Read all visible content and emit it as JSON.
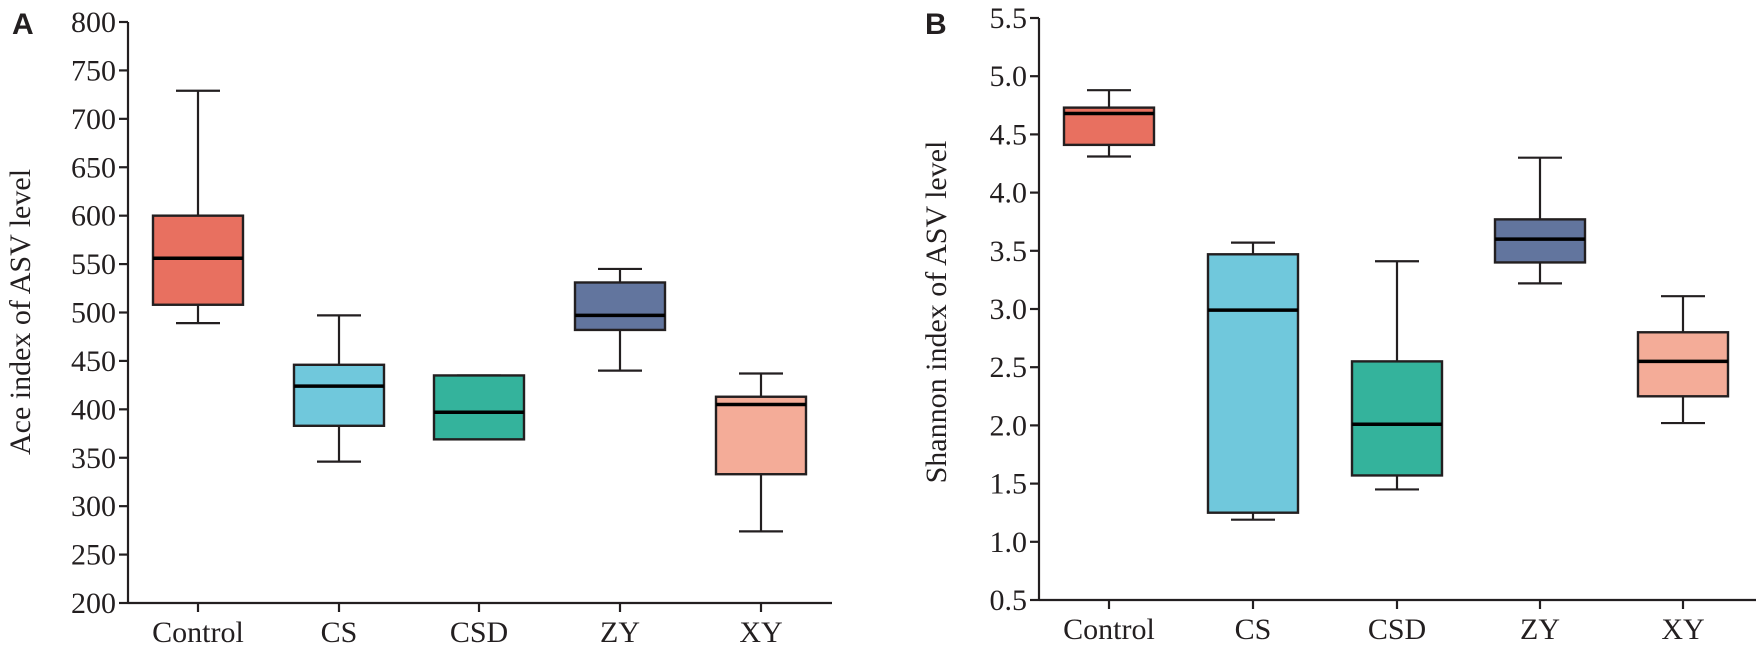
{
  "chart_data": [
    {
      "type": "boxplot",
      "panel": "A",
      "title": "",
      "xlabel": "",
      "ylabel": "Ace index of ASV level",
      "ylim": [
        200,
        800
      ],
      "yticks": [
        "200",
        "250",
        "300",
        "350",
        "400",
        "450",
        "500",
        "550",
        "600",
        "650",
        "700",
        "750",
        "800"
      ],
      "ytick_values": [
        200,
        250,
        300,
        350,
        400,
        450,
        500,
        550,
        600,
        650,
        700,
        750,
        800
      ],
      "grid": false,
      "categories": [
        "Control",
        "CS",
        "CSD",
        "ZY",
        "XY"
      ],
      "colors": [
        "#e87060",
        "#70c8dc",
        "#34b39c",
        "#62759e",
        "#f4ac98"
      ],
      "boxes": [
        {
          "label": "Control",
          "min": 489,
          "q1": 508,
          "median": 556,
          "q3": 600,
          "max": 729
        },
        {
          "label": "CS",
          "min": 346,
          "q1": 383,
          "median": 424,
          "q3": 446,
          "max": 497
        },
        {
          "label": "CSD",
          "min": 369,
          "q1": 369,
          "median": 397,
          "q3": 435,
          "max": 435
        },
        {
          "label": "ZY",
          "min": 440,
          "q1": 482,
          "median": 497,
          "q3": 531,
          "max": 545
        },
        {
          "label": "XY",
          "min": 274,
          "q1": 333,
          "median": 405,
          "q3": 413,
          "max": 437
        }
      ]
    },
    {
      "type": "boxplot",
      "panel": "B",
      "title": "",
      "xlabel": "",
      "ylabel": "Shannon index of ASV level",
      "ylim": [
        0.5,
        5.5
      ],
      "yticks": [
        "0.5",
        "1.0",
        "1.5",
        "2.0",
        "2.5",
        "3.0",
        "3.5",
        "4.0",
        "4.5",
        "5.0",
        "5.5"
      ],
      "ytick_values": [
        0.5,
        1.0,
        1.5,
        2.0,
        2.5,
        3.0,
        3.5,
        4.0,
        4.5,
        5.0,
        5.5
      ],
      "grid": false,
      "categories": [
        "Control",
        "CS",
        "CSD",
        "ZY",
        "XY"
      ],
      "colors": [
        "#e87060",
        "#70c8dc",
        "#34b39c",
        "#62759e",
        "#f4ac98"
      ],
      "boxes": [
        {
          "label": "Control",
          "min": 4.31,
          "q1": 4.41,
          "median": 4.68,
          "q3": 4.73,
          "max": 4.88
        },
        {
          "label": "CS",
          "min": 1.19,
          "q1": 1.25,
          "median": 2.99,
          "q3": 3.47,
          "max": 3.57
        },
        {
          "label": "CSD",
          "min": 1.45,
          "q1": 1.57,
          "median": 2.01,
          "q3": 2.55,
          "max": 3.41
        },
        {
          "label": "ZY",
          "min": 3.22,
          "q1": 3.4,
          "median": 3.6,
          "q3": 3.77,
          "max": 4.3
        },
        {
          "label": "XY",
          "min": 2.02,
          "q1": 2.25,
          "median": 2.55,
          "q3": 2.8,
          "max": 3.11
        }
      ]
    }
  ]
}
